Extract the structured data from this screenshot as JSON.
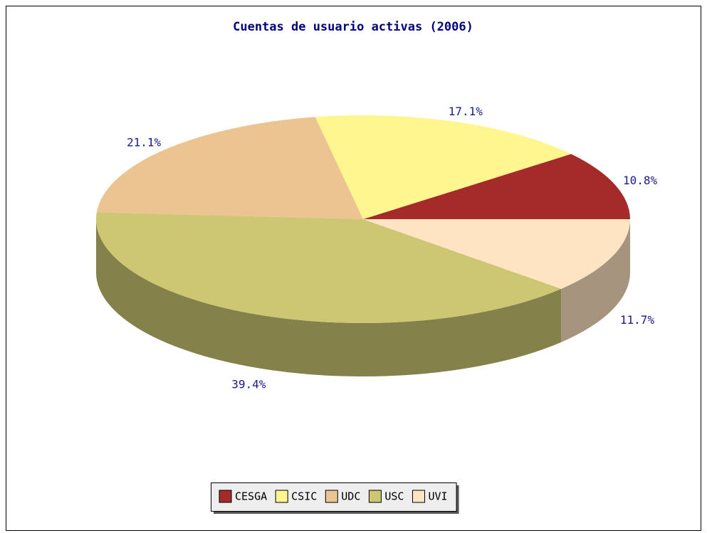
{
  "chart_data": {
    "type": "pie3d",
    "title": "Cuentas de usuario activas (2006)",
    "categories": [
      "CESGA",
      "CSIC",
      "UDC",
      "USC",
      "UVI"
    ],
    "values": [
      10.8,
      17.1,
      21.1,
      39.4,
      11.7
    ],
    "value_labels": [
      "10.8%",
      "17.1%",
      "21.1%",
      "39.4%",
      "11.7%"
    ],
    "colors": [
      "#a52a2a",
      "#fff68f",
      "#ecc491",
      "#cdc673",
      "#ffe4c4"
    ],
    "legend": "bottom"
  }
}
